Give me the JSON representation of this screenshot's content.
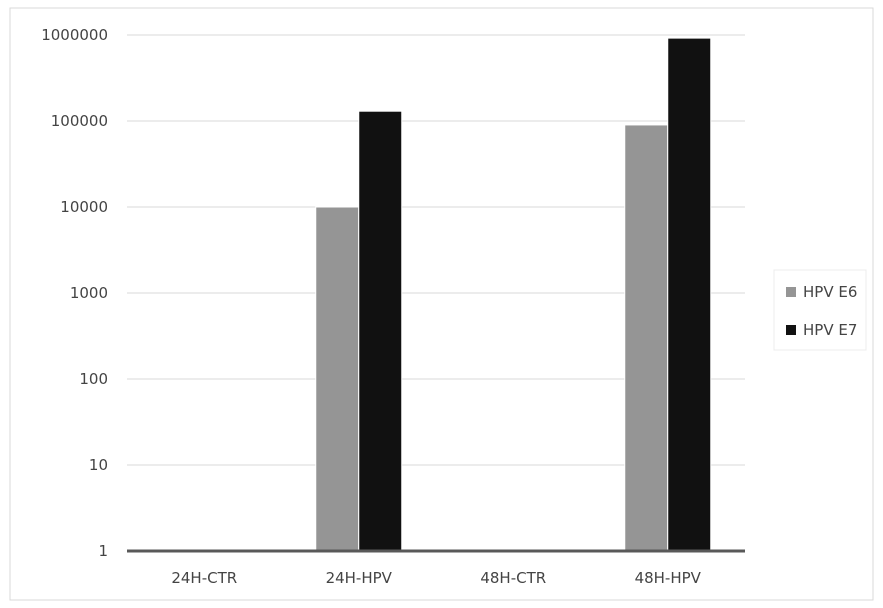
{
  "chart_data": {
    "type": "bar",
    "yscale": "log",
    "ylim": [
      1,
      1000000
    ],
    "yticks": [
      "1",
      "10",
      "100",
      "1000",
      "10000",
      "100000",
      "1000000"
    ],
    "categories": [
      "24H-CTR",
      "24H-HPV",
      "48H-CTR",
      "48H-HPV"
    ],
    "series": [
      {
        "name": "HPV E6",
        "color": "#959595",
        "values": [
          1,
          10000,
          1,
          90000
        ]
      },
      {
        "name": "HPV E7",
        "color": "#111111",
        "values": [
          1,
          130000,
          1,
          920000
        ]
      }
    ],
    "grid": true,
    "legend_position": "right"
  }
}
